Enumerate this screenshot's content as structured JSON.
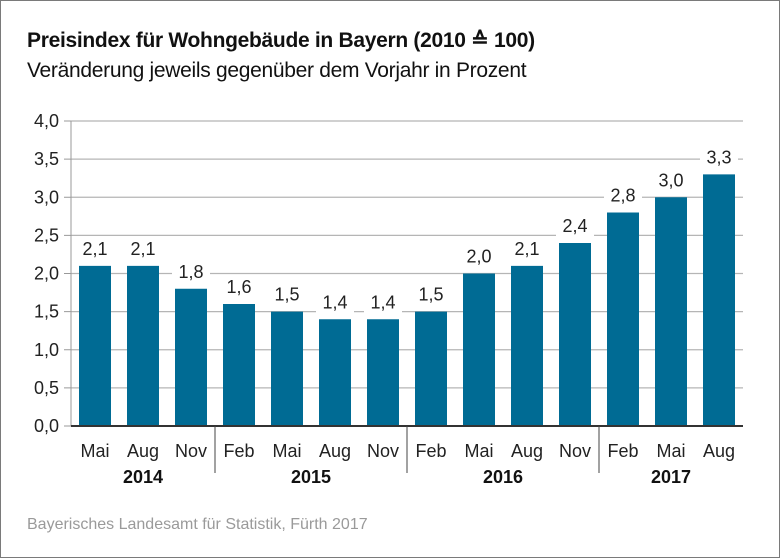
{
  "header": {
    "title": "Preisindex für Wohngebäude in Bayern (2010 ≙ 100)",
    "subtitle": "Veränderung jeweils gegenüber dem Vorjahr in Prozent"
  },
  "footer": {
    "source": "Bayerisches Landesamt für Statistik, Fürth 2017"
  },
  "chart_data": {
    "type": "bar",
    "title": "Preisindex für Wohngebäude in Bayern (2010 ≙ 100)",
    "subtitle": "Veränderung jeweils gegenüber dem Vorjahr in Prozent",
    "xlabel": "",
    "ylabel": "",
    "ylim": [
      0,
      4.0
    ],
    "yticks": [
      0,
      0.5,
      1.0,
      1.5,
      2.0,
      2.5,
      3.0,
      3.5,
      4.0
    ],
    "ytick_labels": [
      "0,0",
      "0,5",
      "1,0",
      "1,5",
      "2,0",
      "2,5",
      "3,0",
      "3,5",
      "4,0"
    ],
    "grid": true,
    "bar_color": "#006b94",
    "categories": [
      "Mai",
      "Aug",
      "Nov",
      "Feb",
      "Mai",
      "Aug",
      "Nov",
      "Feb",
      "Mai",
      "Aug",
      "Nov",
      "Feb",
      "Mai",
      "Aug"
    ],
    "values": [
      2.1,
      2.1,
      1.8,
      1.6,
      1.5,
      1.4,
      1.4,
      1.5,
      2.0,
      2.1,
      2.4,
      2.8,
      3.0,
      3.3
    ],
    "value_labels": [
      "2,1",
      "2,1",
      "1,8",
      "1,6",
      "1,5",
      "1,4",
      "1,4",
      "1,5",
      "2,0",
      "2,1",
      "2,4",
      "2,8",
      "3,0",
      "3,3"
    ],
    "groups": [
      {
        "label": "2014",
        "count": 3
      },
      {
        "label": "2015",
        "count": 4
      },
      {
        "label": "2016",
        "count": 4
      },
      {
        "label": "2017",
        "count": 3
      }
    ]
  }
}
